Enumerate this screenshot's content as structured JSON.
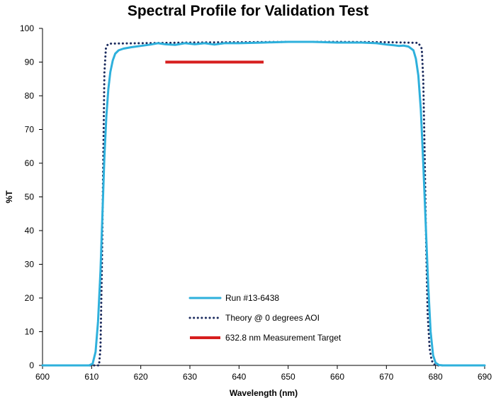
{
  "chart_data": {
    "type": "line",
    "title": "Spectral Profile for Validation Test",
    "xlabel": "Wavelength (nm)",
    "ylabel": "%T",
    "xlim": [
      600,
      690
    ],
    "ylim": [
      0,
      100
    ],
    "x_ticks": [
      600,
      610,
      620,
      630,
      640,
      650,
      660,
      670,
      680,
      690
    ],
    "y_ticks": [
      0,
      10,
      20,
      30,
      40,
      50,
      60,
      70,
      80,
      90,
      100
    ],
    "grid": false,
    "legend_position": "bottom-center",
    "series": [
      {
        "name": "Run #13-6438",
        "style": "solid",
        "color": "#2EB0DC",
        "x": [
          600,
          609.5,
          610.2,
          610.8,
          611.3,
          611.8,
          612.2,
          612.6,
          613,
          613.4,
          613.8,
          614.3,
          614.8,
          615.5,
          616.5,
          618,
          620,
          622,
          623.5,
          625,
          627,
          629,
          631,
          633,
          635,
          637,
          640,
          645,
          650,
          655,
          660,
          665,
          668,
          670,
          671.5,
          672.5,
          673.5,
          674.5,
          675.5,
          676,
          676.5,
          677,
          677.5,
          678,
          678.5,
          679,
          679.5,
          680,
          680.7,
          681.5,
          690
        ],
        "y": [
          0,
          0,
          0.5,
          4,
          13,
          28,
          45,
          62,
          74,
          82,
          87,
          90.5,
          92.5,
          93.5,
          94,
          94.4,
          94.8,
          95.2,
          95.6,
          95.3,
          95.1,
          95.6,
          95.3,
          95.6,
          95.2,
          95.6,
          95.6,
          95.8,
          96,
          96,
          95.8,
          95.8,
          95.6,
          95.2,
          95,
          94.8,
          94.9,
          94.6,
          93.5,
          91,
          86,
          76,
          60,
          42,
          24,
          10,
          3,
          0.8,
          0.1,
          0,
          0
        ]
      },
      {
        "name": "Theory @ 0 degrees AOI",
        "style": "dotted",
        "color": "#1B2B5E",
        "x": [
          600,
          611.5,
          611.8,
          612.1,
          612.4,
          612.6,
          612.9,
          613.3,
          614,
          620,
          630,
          640,
          650,
          660,
          670,
          676.5,
          677.2,
          677.5,
          677.8,
          678.1,
          678.4,
          678.8,
          679.2,
          679.7,
          680.3,
          690
        ],
        "y": [
          0,
          0,
          5,
          30,
          65,
          87,
          94,
          95.3,
          95.5,
          95.6,
          95.8,
          95.9,
          96,
          96,
          95.9,
          95.7,
          94,
          85,
          62,
          35,
          15,
          5,
          1.5,
          0.3,
          0,
          0
        ]
      },
      {
        "name": "632.8 nm Measurement Target",
        "style": "solid-thick",
        "color": "#D71E1E",
        "x": [
          625,
          645
        ],
        "y": [
          90,
          90
        ]
      }
    ]
  }
}
